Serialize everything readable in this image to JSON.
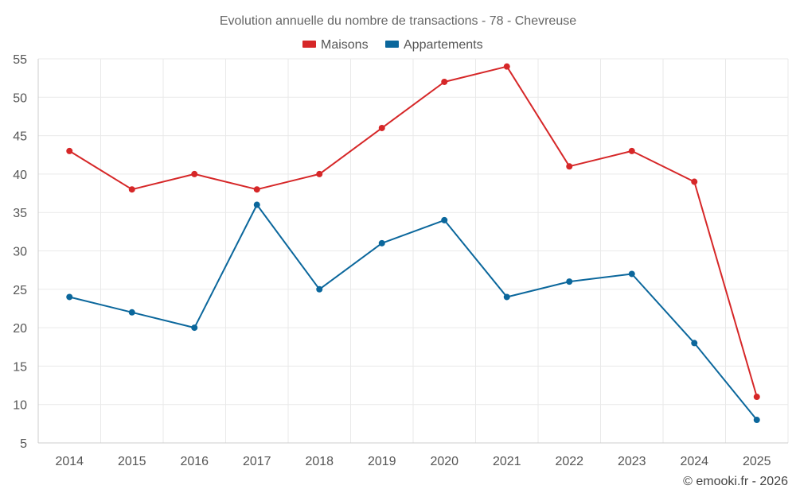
{
  "chart_data": {
    "type": "line",
    "title": "Evolution annuelle du nombre de transactions - 78 - Chevreuse",
    "categories": [
      "2014",
      "2015",
      "2016",
      "2017",
      "2018",
      "2019",
      "2020",
      "2021",
      "2022",
      "2023",
      "2024",
      "2025"
    ],
    "series": [
      {
        "name": "Maisons",
        "color": "#d62728",
        "values": [
          43,
          38,
          40,
          38,
          40,
          46,
          52,
          54,
          41,
          43,
          39,
          11
        ]
      },
      {
        "name": "Appartements",
        "color": "#0b679c",
        "values": [
          24,
          22,
          20,
          36,
          25,
          31,
          34,
          24,
          26,
          27,
          18,
          8
        ]
      }
    ],
    "yticks": [
      5,
      10,
      15,
      20,
      25,
      30,
      35,
      40,
      45,
      50,
      55
    ],
    "ylim": [
      5,
      55
    ],
    "xlabel": "",
    "ylabel": "",
    "legend_position": "top-center",
    "grid": true
  },
  "credit": "© emooki.fr - 2026"
}
